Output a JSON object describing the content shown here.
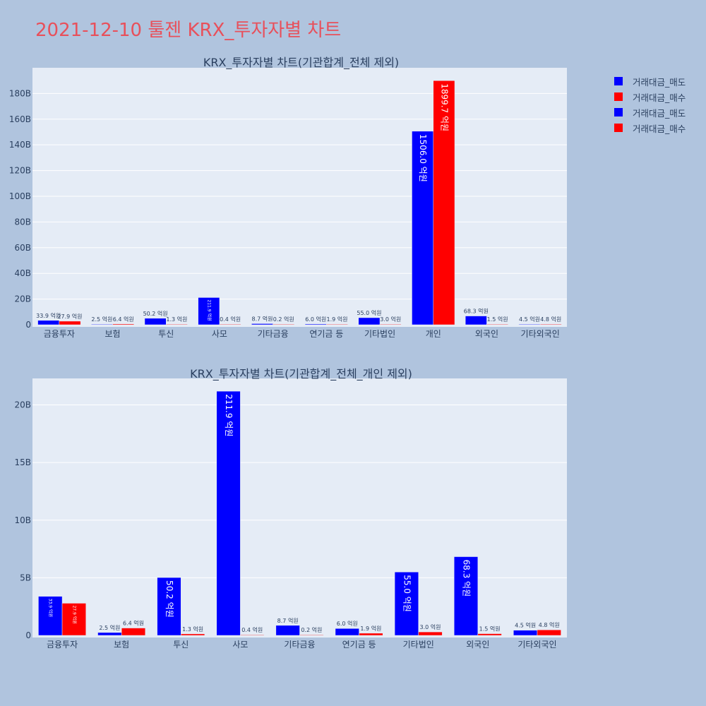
{
  "page": {
    "title": "2021-12-10 툴젠 KRX_투자자별 차트",
    "title_color": "#e8505b",
    "background": "#b0c4de"
  },
  "legend": {
    "items": [
      {
        "label": "거래대금_매도",
        "color": "#0000ff"
      },
      {
        "label": "거래대금_매수",
        "color": "#ff0000"
      },
      {
        "label": "거래대금_매도",
        "color": "#0000ff"
      },
      {
        "label": "거래대금_매수",
        "color": "#ff0000"
      }
    ]
  },
  "chart_data": [
    {
      "type": "bar",
      "title": "KRX_투자자별 차트(기관합계_전체 제외)",
      "categories": [
        "금융투자",
        "보험",
        "투신",
        "사모",
        "기타금융",
        "연기금 등",
        "기타법인",
        "개인",
        "외국인",
        "기타외국인"
      ],
      "series": [
        {
          "name": "거래대금_매도",
          "color": "#0000ff",
          "values": [
            3.39,
            0.25,
            5.02,
            21.19,
            0.87,
            0.6,
            5.5,
            150.6,
            6.83,
            0.45
          ],
          "labels": [
            "33.9 억원",
            "2.5 억원",
            "50.2 억원",
            "211.9 억원",
            "8.7 억원",
            "6.0 억원",
            "55.0 억원",
            "1506.0 억원",
            "68.3 억원",
            "4.5 억원"
          ]
        },
        {
          "name": "거래대금_매수",
          "color": "#ff0000",
          "values": [
            2.79,
            0.64,
            0.13,
            0.04,
            0.02,
            0.19,
            0.3,
            189.97,
            0.15,
            0.48
          ],
          "labels": [
            "27.9 억원",
            "6.4 억원",
            "1.3 억원",
            "0.4 억원",
            "0.2 억원",
            "1.9 억원",
            "3.0 억원",
            "1899.7 억원",
            "1.5 억원",
            "4.8 억원"
          ]
        }
      ],
      "yticks": [
        0,
        20,
        40,
        60,
        80,
        100,
        120,
        140,
        160,
        180
      ],
      "ytick_labels": [
        "0",
        "20B",
        "40B",
        "60B",
        "80B",
        "100B",
        "120B",
        "140B",
        "160B",
        "180B"
      ],
      "ylim": [
        0,
        199.97
      ]
    },
    {
      "type": "bar",
      "title": "KRX_투자자별 차트(기관합계_전체_개인 제외)",
      "categories": [
        "금융투자",
        "보험",
        "투신",
        "사모",
        "기타금융",
        "연기금 등",
        "기타법인",
        "외국인",
        "기타외국인"
      ],
      "series": [
        {
          "name": "거래대금_매도",
          "color": "#0000ff",
          "values": [
            3.39,
            0.25,
            5.02,
            21.19,
            0.87,
            0.6,
            5.5,
            6.83,
            0.45
          ],
          "labels": [
            "33.9 억원",
            "2.5 억원",
            "50.2 억원",
            "211.9 억원",
            "8.7 억원",
            "6.0 억원",
            "55.0 억원",
            "68.3 억원",
            "4.5 억원"
          ]
        },
        {
          "name": "거래대금_매수",
          "color": "#ff0000",
          "values": [
            2.79,
            0.64,
            0.13,
            0.04,
            0.02,
            0.19,
            0.3,
            0.15,
            0.48
          ],
          "labels": [
            "27.9 억원",
            "6.4 억원",
            "1.3 억원",
            "0.4 억원",
            "0.2 억원",
            "1.9 억원",
            "3.0 억원",
            "1.5 억원",
            "4.8 억원"
          ]
        }
      ],
      "yticks": [
        0,
        5,
        10,
        15,
        20
      ],
      "ytick_labels": [
        "0",
        "5B",
        "10B",
        "15B",
        "20B"
      ],
      "ylim": [
        0,
        22.3
      ]
    }
  ]
}
